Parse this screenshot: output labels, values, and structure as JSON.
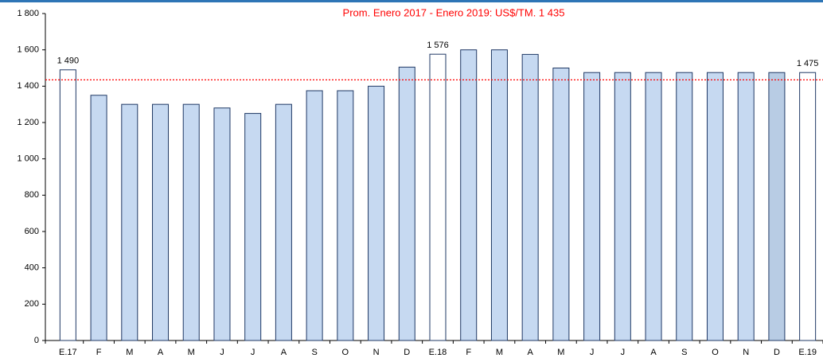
{
  "chart_data": {
    "type": "bar",
    "title": "Prom. Enero 2017 - Enero 2019: US$/TM. 1 435",
    "categories": [
      "E.17",
      "F",
      "M",
      "A",
      "M",
      "J",
      "J",
      "A",
      "S",
      "O",
      "N",
      "D",
      "E.18",
      "F",
      "M",
      "A",
      "M",
      "J",
      "J",
      "A",
      "S",
      "O",
      "N",
      "D",
      "E.19"
    ],
    "values": [
      1490,
      1350,
      1300,
      1300,
      1300,
      1280,
      1250,
      1300,
      1375,
      1375,
      1400,
      1505,
      1576,
      1600,
      1600,
      1575,
      1500,
      1475,
      1475,
      1475,
      1475,
      1475,
      1475,
      1475,
      1475
    ],
    "value_labels": [
      "1 490",
      null,
      null,
      null,
      null,
      null,
      null,
      null,
      null,
      null,
      null,
      null,
      "1 576",
      null,
      null,
      null,
      null,
      null,
      null,
      null,
      null,
      null,
      null,
      null,
      "1 475"
    ],
    "colors": [
      "#ffffff",
      "#c6d9f1",
      "#c6d9f1",
      "#c6d9f1",
      "#c6d9f1",
      "#c6d9f1",
      "#c6d9f1",
      "#c6d9f1",
      "#c6d9f1",
      "#c6d9f1",
      "#c6d9f1",
      "#c6d9f1",
      "#ffffff",
      "#c6d9f1",
      "#c6d9f1",
      "#c6d9f1",
      "#c6d9f1",
      "#c6d9f1",
      "#c6d9f1",
      "#c6d9f1",
      "#c6d9f1",
      "#c6d9f1",
      "#c6d9f1",
      "#b8cce4",
      "#ffffff"
    ],
    "border_color": "#1f3864",
    "reference_line": {
      "value": 1435,
      "color": "#ff0000"
    },
    "ylim": [
      0,
      1800
    ],
    "yticks": [
      0,
      200,
      400,
      600,
      800,
      {
        "value": 1000,
        "label": "1 000"
      },
      {
        "value": 1200,
        "label": "1 200"
      },
      {
        "value": 1400,
        "label": "1 400"
      },
      {
        "value": 1600,
        "label": "1 600"
      },
      {
        "value": 1800,
        "label": "1 800"
      }
    ],
    "grid": false
  }
}
